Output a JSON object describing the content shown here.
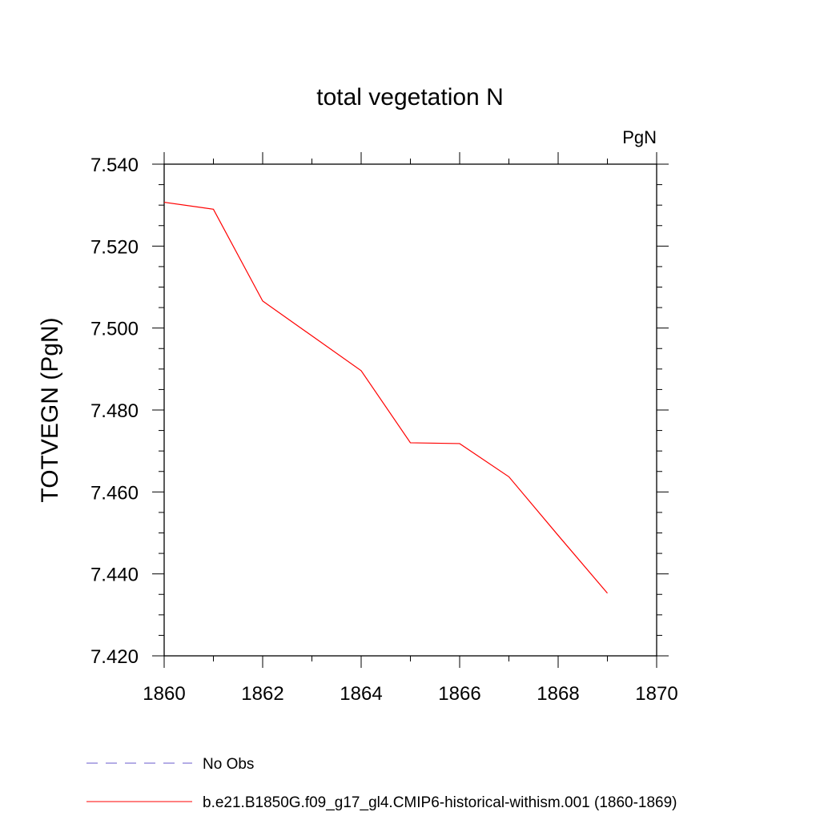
{
  "chart_data": {
    "type": "line",
    "title": "total vegetation N",
    "units_label": "PgN",
    "xlabel": "",
    "ylabel": "TOTVEGN  (PgN)",
    "xlim": [
      1860,
      1870
    ],
    "ylim": [
      7.42,
      7.54
    ],
    "x_ticks": [
      "1860",
      "1862",
      "1864",
      "1866",
      "1868",
      "1870"
    ],
    "y_ticks": [
      "7.540",
      "7.520",
      "7.500",
      "7.480",
      "7.460",
      "7.440",
      "7.420"
    ],
    "grid": false,
    "legend_position": "bottom-left",
    "series": [
      {
        "name": "No Obs",
        "color": "#6a5acd",
        "dashed": true,
        "x": [],
        "values": []
      },
      {
        "name": "b.e21.B1850G.f09_g17_gl4.CMIP6-historical-withism.001 (1860-1869)",
        "color": "#ff0000",
        "dashed": false,
        "x": [
          1860,
          1861,
          1862,
          1863,
          1864,
          1865,
          1866,
          1867,
          1868,
          1869
        ],
        "values": [
          7.5307,
          7.529,
          7.5066,
          7.4981,
          7.4896,
          7.472,
          7.4718,
          7.4637,
          7.4494,
          7.4353
        ]
      }
    ]
  }
}
